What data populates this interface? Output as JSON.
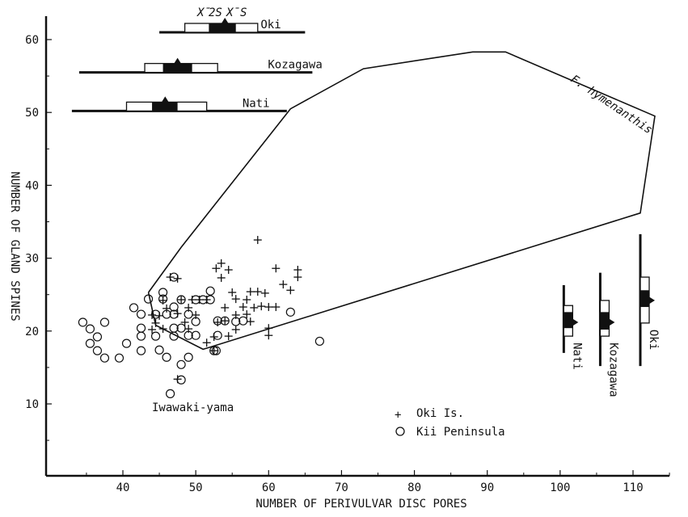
{
  "chart_data": {
    "type": "scatter",
    "xlabel": "NUMBER OF PERIVULVAR DISC PORES",
    "ylabel": "NUMBER OF GLAND SPINES",
    "xlim": [
      30,
      115
    ],
    "ylim": [
      0,
      62
    ],
    "xticks": [
      "40",
      "50",
      "60",
      "70",
      "80",
      "90",
      "100",
      "110"
    ],
    "yticks": [
      "10",
      "20",
      "30",
      "40",
      "50",
      "60"
    ],
    "series": [
      {
        "name": "Oki Is.",
        "marker": "+",
        "points": [
          [
            58.5,
            32.5
          ],
          [
            53.5,
            29.3
          ],
          [
            52.8,
            28.6
          ],
          [
            54.5,
            28.4
          ],
          [
            61,
            28.6
          ],
          [
            64,
            28.4
          ],
          [
            64,
            27.4
          ],
          [
            53.5,
            27.3
          ],
          [
            47.5,
            27.2
          ],
          [
            46.5,
            27.4
          ],
          [
            62,
            26.4
          ],
          [
            63,
            25.6
          ],
          [
            55,
            25.3
          ],
          [
            57.5,
            25.4
          ],
          [
            58.5,
            25.4
          ],
          [
            59.5,
            25.2
          ],
          [
            55.5,
            24.4
          ],
          [
            57,
            24.3
          ],
          [
            48,
            24.3
          ],
          [
            49.5,
            24.3
          ],
          [
            50.5,
            24.3
          ],
          [
            51.5,
            24.3
          ],
          [
            45.5,
            24.2
          ],
          [
            59,
            23.4
          ],
          [
            60,
            23.3
          ],
          [
            61,
            23.3
          ],
          [
            58,
            23.2
          ],
          [
            56.5,
            23.3
          ],
          [
            54,
            23.2
          ],
          [
            49,
            23.2
          ],
          [
            46,
            23.1
          ],
          [
            47.5,
            22.4
          ],
          [
            55.5,
            22.2
          ],
          [
            57,
            22.3
          ],
          [
            50,
            22.2
          ],
          [
            45,
            22.1
          ],
          [
            44,
            22.2
          ],
          [
            54,
            21.4
          ],
          [
            57.5,
            21.3
          ],
          [
            53,
            21.2
          ],
          [
            48.5,
            21.2
          ],
          [
            44.5,
            21.1
          ],
          [
            45.5,
            20.3
          ],
          [
            49,
            20.3
          ],
          [
            44,
            20.2
          ],
          [
            55.5,
            20.2
          ],
          [
            60,
            20.4
          ],
          [
            60,
            19.4
          ],
          [
            54.5,
            19.3
          ],
          [
            52.5,
            19.2
          ],
          [
            51.5,
            18.4
          ],
          [
            52.5,
            17.3
          ],
          [
            47.5,
            13.4
          ]
        ]
      },
      {
        "name": "Kii Peninsula",
        "marker": "o",
        "points": [
          [
            34.5,
            21.2
          ],
          [
            37.5,
            21.2
          ],
          [
            35.5,
            20.3
          ],
          [
            36.5,
            19.2
          ],
          [
            35.5,
            18.3
          ],
          [
            36.5,
            17.3
          ],
          [
            37.5,
            16.3
          ],
          [
            39.5,
            16.3
          ],
          [
            40.5,
            18.3
          ],
          [
            41.5,
            23.2
          ],
          [
            42.5,
            22.3
          ],
          [
            42.5,
            20.4
          ],
          [
            42.5,
            19.3
          ],
          [
            42.5,
            17.3
          ],
          [
            43.5,
            24.4
          ],
          [
            44.5,
            22.3
          ],
          [
            44.5,
            19.3
          ],
          [
            45,
            17.4
          ],
          [
            45.5,
            25.3
          ],
          [
            45.5,
            24.4
          ],
          [
            46,
            22.3
          ],
          [
            46,
            16.4
          ],
          [
            47,
            27.4
          ],
          [
            47,
            23.3
          ],
          [
            47,
            22.3
          ],
          [
            47,
            20.4
          ],
          [
            47,
            19.3
          ],
          [
            48,
            24.3
          ],
          [
            48,
            20.4
          ],
          [
            48,
            15.4
          ],
          [
            48,
            13.3
          ],
          [
            46.5,
            11.4
          ],
          [
            49,
            22.3
          ],
          [
            49,
            19.4
          ],
          [
            49,
            16.4
          ],
          [
            50,
            24.3
          ],
          [
            50,
            21.3
          ],
          [
            50,
            19.4
          ],
          [
            51,
            24.3
          ],
          [
            52,
            25.5
          ],
          [
            52,
            24.3
          ],
          [
            53,
            21.4
          ],
          [
            53,
            19.4
          ],
          [
            54,
            21.4
          ],
          [
            55.5,
            21.3
          ],
          [
            56.5,
            21.4
          ],
          [
            63,
            22.6
          ],
          [
            67,
            18.6
          ],
          [
            52.8,
            17.3
          ],
          [
            52.5,
            17.3
          ]
        ]
      }
    ],
    "polygon": {
      "name": "F. hymenanthis",
      "points": [
        [
          43.5,
          25.3
        ],
        [
          48,
          31.5
        ],
        [
          63,
          50.5
        ],
        [
          73,
          56
        ],
        [
          88,
          58.3
        ],
        [
          92.5,
          58.3
        ],
        [
          113,
          49.5
        ],
        [
          111,
          36.2
        ],
        [
          51,
          17.5
        ],
        [
          44.5,
          20.8
        ],
        [
          43.5,
          25.3
        ]
      ]
    },
    "x_summaries": [
      {
        "name": "Oki",
        "y": 61,
        "line": [
          45,
          65
        ],
        "box": [
          48.5,
          58.5
        ],
        "filled": [
          51.8,
          55.5
        ],
        "mean": 54
      },
      {
        "name": "Kozagawa",
        "y": 55.5,
        "line": [
          34,
          66
        ],
        "box": [
          43,
          53
        ],
        "filled": [
          45.5,
          49.5
        ],
        "mean": 47.5
      },
      {
        "name": "Nati",
        "y": 50.2,
        "line": [
          33,
          62.5
        ],
        "box": [
          40.5,
          51.5
        ],
        "filled": [
          44,
          47.5
        ],
        "mean": 45.8
      }
    ],
    "y_summaries": [
      {
        "name": "Nati",
        "x": 100.5,
        "line": [
          17,
          26.3
        ],
        "box": [
          19.3,
          23.5
        ],
        "filled": [
          20.4,
          22.6
        ],
        "mean": 21.2
      },
      {
        "name": "Kozagawa",
        "x": 105.5,
        "line": [
          15.2,
          28
        ],
        "box": [
          19.3,
          24.2
        ],
        "filled": [
          20.2,
          22.6
        ],
        "mean": 21.2
      },
      {
        "name": "Oki",
        "x": 111,
        "line": [
          15.2,
          33.3
        ],
        "box": [
          21.1,
          27.4
        ],
        "filled": [
          23.3,
          25.6
        ],
        "mean": 24.2
      }
    ],
    "key": [
      "X̄",
      "2S",
      "X̄",
      "S"
    ],
    "annotations": {
      "polygon_label": "F. hymenanthis",
      "site": "Iwawaki-yama"
    },
    "legend": {
      "placement": "bottom-center",
      "items": [
        {
          "marker": "+",
          "label": "Oki Is."
        },
        {
          "marker": "o",
          "label": "Kii Peninsula"
        }
      ]
    }
  }
}
